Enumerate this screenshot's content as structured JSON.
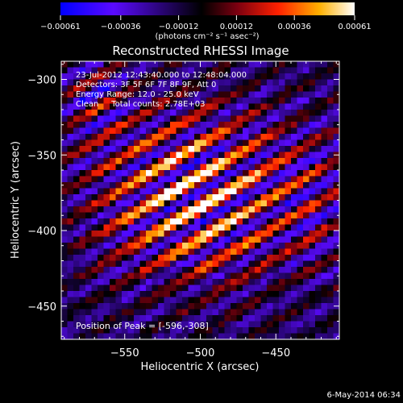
{
  "chart_data": {
    "type": "heatmap",
    "title": "Reconstructed RHESSI Image",
    "xlabel": "Heliocentric X (arcsec)",
    "ylabel": "Heliocentric Y (arcsec)",
    "xlim": [
      -592,
      -408
    ],
    "ylim": [
      -472,
      -288
    ],
    "x_ticks": [
      {
        "value": -550,
        "label": "−550"
      },
      {
        "value": -500,
        "label": "−500"
      },
      {
        "value": -450,
        "label": "−450"
      }
    ],
    "y_ticks": [
      {
        "value": -300,
        "label": "−300"
      },
      {
        "value": -350,
        "label": "−350"
      },
      {
        "value": -400,
        "label": "−400"
      },
      {
        "value": -450,
        "label": "−450"
      }
    ],
    "colorbar": {
      "range": [
        -0.00061,
        0.00061
      ],
      "ticks": [
        {
          "value": -0.00061,
          "label": "−0.00061"
        },
        {
          "value": -0.00036,
          "label": "−0.00036"
        },
        {
          "value": -0.00012,
          "label": "−0.00012"
        },
        {
          "value": 0.00012,
          "label": "0.00012"
        },
        {
          "value": 0.00036,
          "label": "0.00036"
        },
        {
          "value": 0.00061,
          "label": "0.00061"
        }
      ],
      "unit": "(photons cm⁻² s⁻¹ asec⁻²)",
      "colors": [
        "#0000ff",
        "#5a0aff",
        "#000000",
        "#7a0010",
        "#ff2000",
        "#ffb000",
        "#ffffff"
      ]
    },
    "annotations": [
      "23-Jul-2012 12:43:40.000 to 12:48:04.000",
      "Detectors: 3F 5F 6F 7F 8F 9F, Att 0",
      "Energy Range: 12.0 - 25.0 keV",
      "Clean     Total counts: 2.78E+03"
    ],
    "peak_label": "Position of Peak = [-596,-308]",
    "peak": {
      "x": -596,
      "y": -308
    },
    "image_grid": {
      "nx": 46,
      "ny": 46,
      "pixel_arcsec": 4
    },
    "pattern": {
      "stripe_angle_deg": 60,
      "stripe_period_px": 17,
      "core_center": {
        "x": -505,
        "y": -375
      },
      "core_value": 0.00061,
      "floor_value": -0.0003
    },
    "date_stamp": "6-May-2014 06:34"
  }
}
